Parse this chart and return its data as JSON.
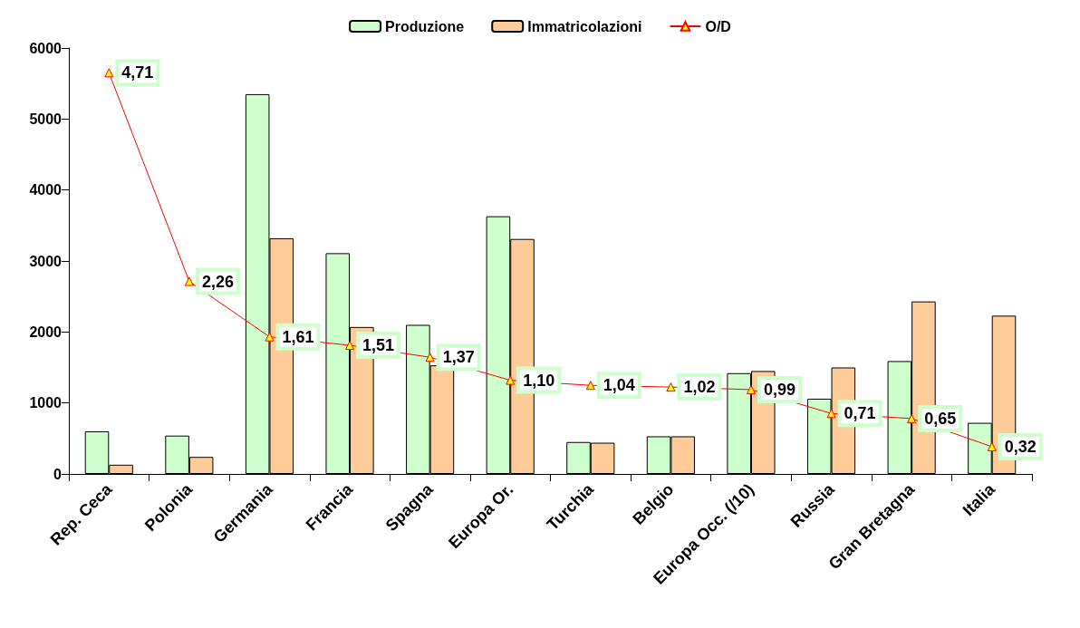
{
  "chart_data": {
    "type": "bar",
    "categories": [
      "Rep. Ceca",
      "Polonia",
      "Germania",
      "Francia",
      "Spagna",
      "Europa Or.",
      "Turchia",
      "Belgio",
      "Europa Occ. (/10)",
      "Russia",
      "Gran Bretagna",
      "Italia"
    ],
    "series": [
      {
        "name": "Produzione",
        "color": "#ccffcc",
        "values": [
          600,
          540,
          5350,
          3110,
          2100,
          3630,
          450,
          530,
          1420,
          1060,
          1590,
          720
        ]
      },
      {
        "name": "Immatricolazioni",
        "color": "#ffcc99",
        "values": [
          130,
          240,
          3320,
          2070,
          1530,
          3310,
          440,
          530,
          1450,
          1500,
          2430,
          2230
        ]
      },
      {
        "name": "O/D",
        "type": "line",
        "axis": "y2",
        "color": "#ff0000",
        "marker": "triangle",
        "values": [
          4.71,
          2.26,
          1.61,
          1.51,
          1.37,
          1.1,
          1.04,
          1.02,
          0.99,
          0.71,
          0.65,
          0.32
        ],
        "value_labels": [
          "4,71",
          "2,26",
          "1,61",
          "1,51",
          "1,37",
          "1,10",
          "1,04",
          "1,02",
          "0,99",
          "0,71",
          "0,65",
          "0,32"
        ]
      }
    ],
    "ylim": [
      0,
      6000
    ],
    "yticks": [
      0,
      1000,
      2000,
      3000,
      4000,
      5000,
      6000
    ],
    "y2lim": [
      0,
      5
    ],
    "tick_labels": "xy",
    "grid": false,
    "legend": "top"
  }
}
